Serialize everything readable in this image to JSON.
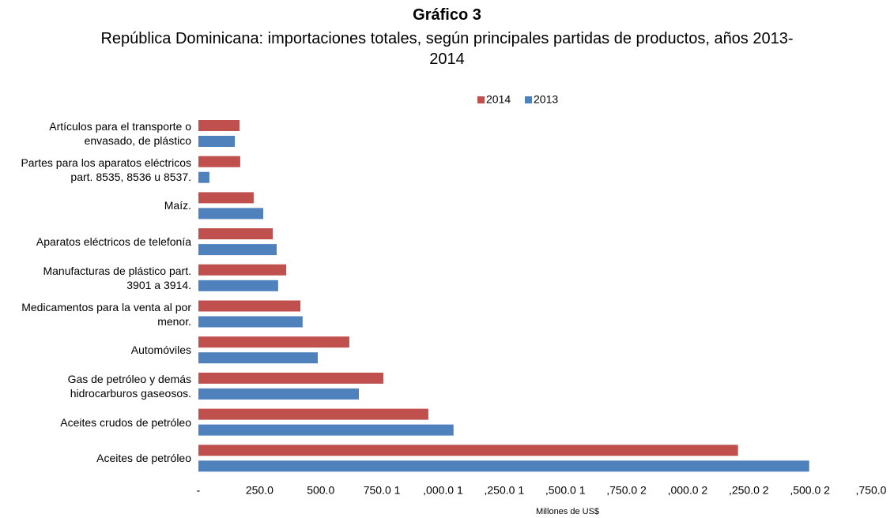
{
  "chart_data": {
    "type": "hbar",
    "title": "Gráfico 3",
    "subtitle": "República Dominicana: importaciones totales, según principales partidas de productos, años 2013-2014",
    "x_label": "Millones de US$",
    "categories": [
      "Artículos para el transporte o\nenvasado, de plástico",
      "Partes para los aparatos eléctricos\npart. 8535, 8536 u 8537.",
      "Maíz.",
      "Aparatos eléctricos de telefonía",
      "Manufacturas de plástico part.\n3901 a 3914.",
      "Medicamentos para la venta al por\nmenor.",
      "Automóviles",
      "Gas de petróleo y demás\nhidrocarburos gaseosos.",
      "Aceites crudos de petróleo",
      "Aceites de petróleo"
    ],
    "series": [
      {
        "name": "2014",
        "color": "#c0504d",
        "values": [
          168,
          171,
          226,
          304,
          359,
          417,
          617,
          756,
          940,
          2206
        ]
      },
      {
        "name": "2013",
        "color": "#4f81bd",
        "values": [
          149,
          45,
          265,
          320,
          326,
          426,
          488,
          656,
          1043,
          2497
        ]
      }
    ],
    "xlim": [
      0,
      2750
    ],
    "xticks": [
      {
        "value": 0,
        "label": "-"
      },
      {
        "value": 250,
        "label": "250.0"
      },
      {
        "value": 500,
        "label": "500.0"
      },
      {
        "value": 750,
        "label": "750.0 1"
      },
      {
        "value": 1000,
        "label": ",000.0 1"
      },
      {
        "value": 1250,
        "label": ",250.0 1"
      },
      {
        "value": 1500,
        "label": ",500.0 1"
      },
      {
        "value": 1750,
        "label": ",750.0 2"
      },
      {
        "value": 2000,
        "label": ",000.0 2"
      },
      {
        "value": 2250,
        "label": ",250.0 2"
      },
      {
        "value": 2500,
        "label": ",500.0 2"
      },
      {
        "value": 2750,
        "label": ",750.0"
      }
    ],
    "legend": "top"
  }
}
